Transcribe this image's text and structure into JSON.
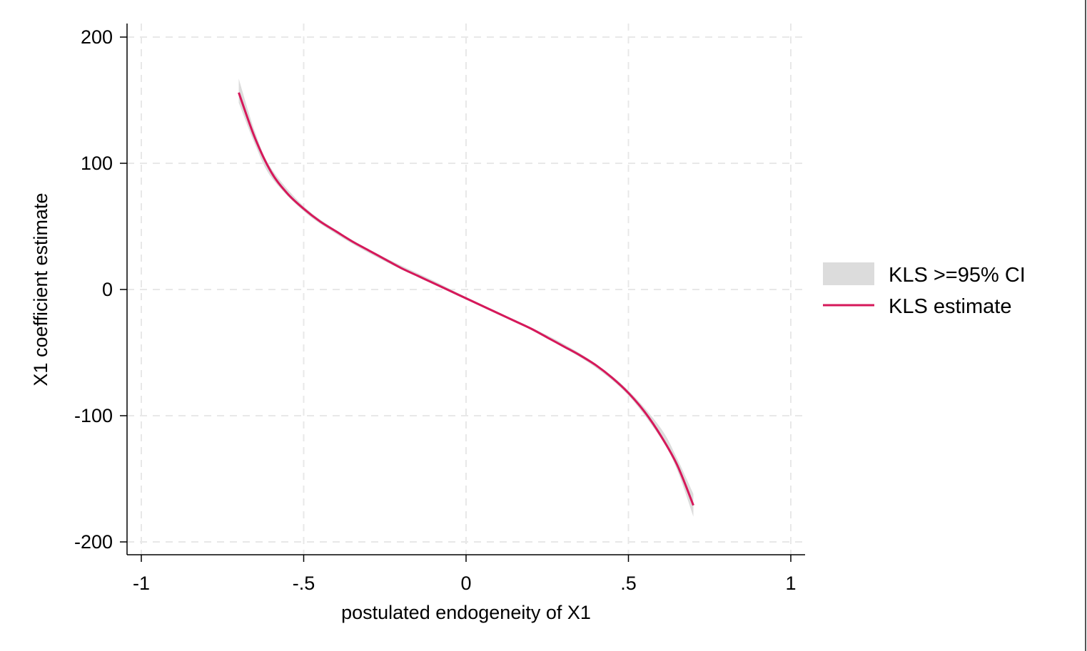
{
  "chart_data": {
    "type": "line",
    "title": "",
    "xlabel": "postulated endogeneity of X1",
    "ylabel": "X1 coefficient estimate",
    "xlim": [
      -1.04,
      1.04
    ],
    "ylim": [
      -210,
      210
    ],
    "x_ticks": [
      -1,
      -0.5,
      0,
      0.5,
      1
    ],
    "x_tick_labels": [
      "-1",
      "-.5",
      "0",
      ".5",
      "1"
    ],
    "y_ticks": [
      -200,
      -100,
      0,
      100,
      200
    ],
    "y_tick_labels": [
      "-200",
      "-100",
      "0",
      "100",
      "200"
    ],
    "grid": true,
    "legend_position": "right",
    "colors": {
      "estimate": "#d6185a",
      "ci": "#dcdcdc",
      "grid": "#e8e8e8"
    },
    "series": [
      {
        "name": "KLS >=95% CI",
        "kind": "band",
        "x": [
          -0.7,
          -0.65,
          -0.6,
          -0.5,
          -0.4,
          -0.3,
          -0.2,
          -0.1,
          0,
          0.1,
          0.2,
          0.3,
          0.4,
          0.5,
          0.6,
          0.65,
          0.7
        ],
        "lower": [
          148,
          115,
          89,
          62,
          44,
          29,
          16,
          4,
          -8,
          -20,
          -32,
          -46,
          -62,
          -84,
          -118,
          -143,
          -180
        ],
        "upper": [
          167,
          125,
          96,
          66,
          47,
          32,
          19,
          7,
          -6,
          -18,
          -30,
          -43,
          -59,
          -80,
          -110,
          -134,
          -162
        ]
      },
      {
        "name": "KLS estimate",
        "kind": "line",
        "x": [
          -0.7,
          -0.65,
          -0.6,
          -0.55,
          -0.5,
          -0.45,
          -0.4,
          -0.35,
          -0.3,
          -0.25,
          -0.2,
          -0.15,
          -0.1,
          -0.05,
          0,
          0.05,
          0.1,
          0.15,
          0.2,
          0.25,
          0.3,
          0.35,
          0.4,
          0.45,
          0.5,
          0.55,
          0.6,
          0.65,
          0.7
        ],
        "values": [
          156,
          120,
          93,
          76,
          64,
          54,
          46,
          38,
          31,
          24,
          17,
          11,
          5,
          -1,
          -7,
          -13,
          -19,
          -25,
          -31,
          -38,
          -45,
          -52,
          -60,
          -70,
          -82,
          -97,
          -116,
          -139,
          -171
        ]
      }
    ]
  }
}
